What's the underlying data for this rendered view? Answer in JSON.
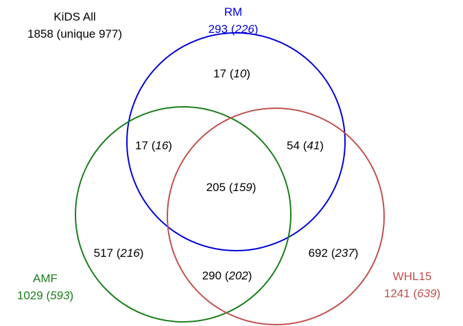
{
  "colors": {
    "rm": "#0000dd",
    "amf": "#1a7d1a",
    "whl15": "#c0504d",
    "text": "#000000"
  },
  "kids_all": {
    "title": "KiDS All",
    "line2": "1858 (unique 977)"
  },
  "sets": {
    "rm": {
      "name": "RM",
      "total": "293",
      "unique": "226"
    },
    "amf": {
      "name": "AMF",
      "total": "1029",
      "unique": "593"
    },
    "whl15": {
      "name": "WHL15",
      "total": "1241",
      "unique": "639"
    }
  },
  "regions": {
    "rm_only": {
      "count": "17",
      "unique": "10"
    },
    "rm_amf": {
      "count": "17",
      "unique": "16"
    },
    "rm_whl15": {
      "count": "54",
      "unique": "41"
    },
    "all_three": {
      "count": "205",
      "unique": "159"
    },
    "amf_only": {
      "count": "517",
      "unique": "216"
    },
    "amf_whl15": {
      "count": "290",
      "unique": "202"
    },
    "whl15_only": {
      "count": "692",
      "unique": "237"
    }
  }
}
